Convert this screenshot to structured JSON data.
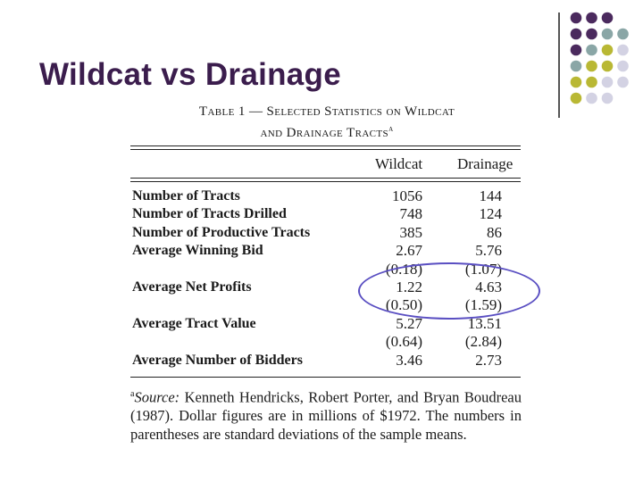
{
  "slide": {
    "title": "Wildcat vs Drainage"
  },
  "table": {
    "caption_line1": "Table 1 — Selected Statistics on Wildcat",
    "caption_line2": "and Drainage Tracts",
    "caption_sup": "a",
    "columns": [
      "Wildcat",
      "Drainage"
    ],
    "rows": [
      {
        "label": "Number of Tracts",
        "wildcat": "1056",
        "drainage": "144"
      },
      {
        "label": "Number of Tracts Drilled",
        "wildcat": "748",
        "drainage": "124"
      },
      {
        "label": "Number of Productive Tracts",
        "wildcat": "385",
        "drainage": "86"
      },
      {
        "label": "Average Winning Bid",
        "wildcat": "2.67",
        "drainage": "5.76"
      },
      {
        "label": "",
        "wildcat": "(0.18)",
        "drainage": "(1.07)"
      },
      {
        "label": "Average Net Profits",
        "wildcat": "1.22",
        "drainage": "4.63"
      },
      {
        "label": "",
        "wildcat": "(0.50)",
        "drainage": "(1.59)"
      },
      {
        "label": "Average Tract Value",
        "wildcat": "5.27",
        "drainage": "13.51"
      },
      {
        "label": "",
        "wildcat": "(0.64)",
        "drainage": "(2.84)"
      },
      {
        "label": "Average Number of Bidders",
        "wildcat": "3.46",
        "drainage": "2.73"
      }
    ],
    "footnote_marker": "a",
    "footnote_source_label": "Source:",
    "footnote_text": " Kenneth Hendricks, Robert Porter, and Bryan Boudreau (1987). Dollar figures are in millions of $1972. The numbers in parentheses are standard deviations of the sample means."
  },
  "theme": {
    "title_color": "#3b1d4d",
    "dot_purple": "#4b2a5e",
    "dot_teal": "#8aa6a6",
    "dot_olive": "#b9b834",
    "dot_lavender": "#d3d2e3",
    "highlight_ellipse": "#5a4fc2"
  }
}
